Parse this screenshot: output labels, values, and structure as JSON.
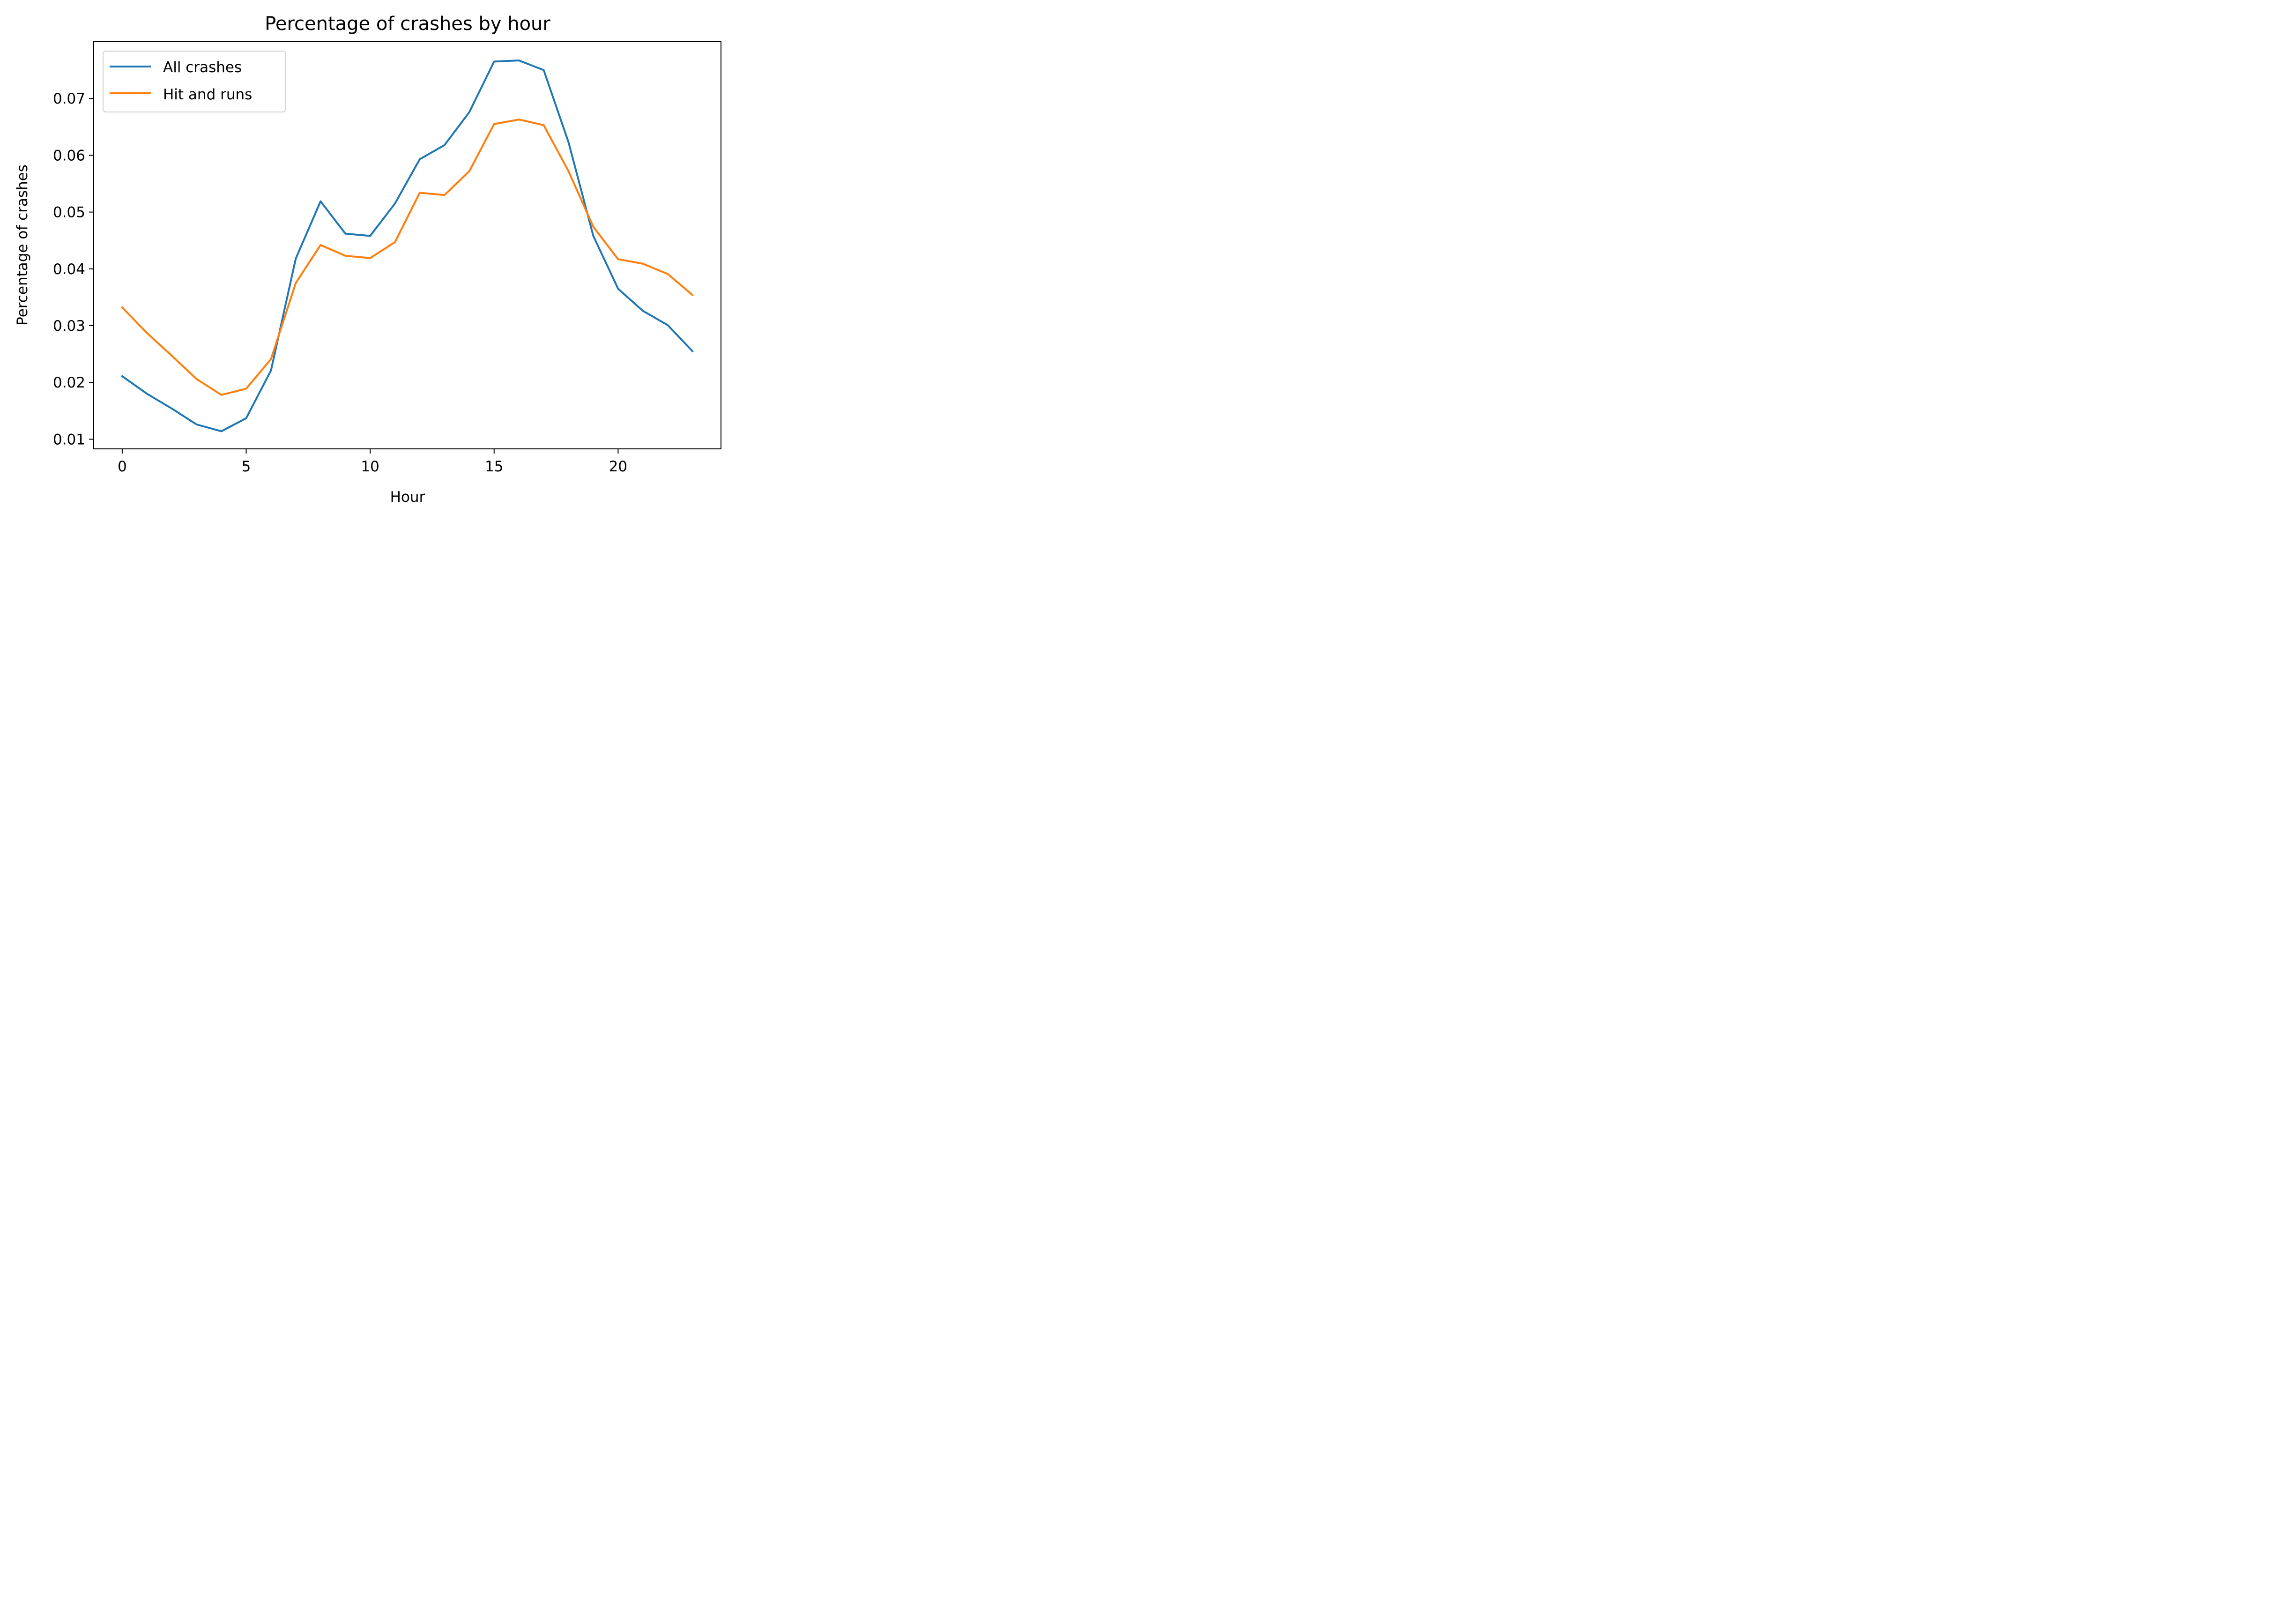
{
  "chart_data": {
    "type": "line",
    "title": "Percentage of crashes by hour",
    "xlabel": "Hour",
    "ylabel": "Percentage of crashes",
    "x": [
      0,
      1,
      2,
      3,
      4,
      5,
      6,
      7,
      8,
      9,
      10,
      11,
      12,
      13,
      14,
      15,
      16,
      17,
      18,
      19,
      20,
      21,
      22,
      23
    ],
    "xlim": [
      -1.15,
      24.15
    ],
    "ylim": [
      0.0083,
      0.08
    ],
    "xticks": [
      0,
      5,
      10,
      15,
      20
    ],
    "xtick_labels": [
      "0",
      "5",
      "10",
      "15",
      "20"
    ],
    "yticks": [
      0.01,
      0.02,
      0.03,
      0.04,
      0.05,
      0.06,
      0.07
    ],
    "ytick_labels": [
      "0.01",
      "0.02",
      "0.03",
      "0.04",
      "0.05",
      "0.06",
      "0.07"
    ],
    "grid": false,
    "legend_position": "upper-left",
    "series": [
      {
        "name": "All crashes",
        "color": "#1f77b4",
        "values": [
          0.0211,
          0.018,
          0.0154,
          0.0126,
          0.0114,
          0.0137,
          0.0221,
          0.0418,
          0.0519,
          0.0462,
          0.0458,
          0.0515,
          0.0593,
          0.0618,
          0.0676,
          0.0765,
          0.0767,
          0.075,
          0.0623,
          0.0458,
          0.0365,
          0.0326,
          0.0301,
          0.0255
        ]
      },
      {
        "name": "Hit and runs",
        "color": "#ff7f0e",
        "values": [
          0.0332,
          0.0287,
          0.0247,
          0.0206,
          0.0178,
          0.0189,
          0.0241,
          0.0375,
          0.0442,
          0.0423,
          0.0419,
          0.0447,
          0.0534,
          0.053,
          0.0572,
          0.0655,
          0.0663,
          0.0653,
          0.0572,
          0.0474,
          0.0417,
          0.0409,
          0.0391,
          0.0354
        ]
      }
    ]
  }
}
